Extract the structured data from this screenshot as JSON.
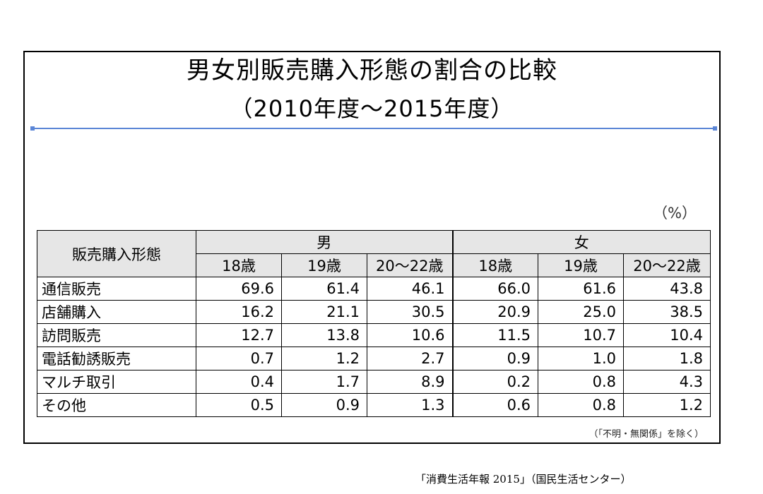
{
  "title": "男女別販売購入形態の割合の比較",
  "subtitle": "（2010年度～2015年度）",
  "unit": "（%）",
  "table": {
    "corner_header": "販売購入形態",
    "groups": [
      "男",
      "女"
    ],
    "ages": [
      "18歳",
      "19歳",
      "20～22歳",
      "18歳",
      "19歳",
      "20～22歳"
    ],
    "rows": [
      {
        "label": "通信販売",
        "values": [
          "69.6",
          "61.4",
          "46.1",
          "66.0",
          "61.6",
          "43.8"
        ]
      },
      {
        "label": "店舗購入",
        "values": [
          "16.2",
          "21.1",
          "30.5",
          "20.9",
          "25.0",
          "38.5"
        ]
      },
      {
        "label": "訪問販売",
        "values": [
          "12.7",
          "13.8",
          "10.6",
          "11.5",
          "10.7",
          "10.4"
        ]
      },
      {
        "label": "電話勧誘販売",
        "values": [
          "0.7",
          "1.2",
          "2.7",
          "0.9",
          "1.0",
          "1.8"
        ]
      },
      {
        "label": "マルチ取引",
        "values": [
          "0.4",
          "1.7",
          "8.9",
          "0.2",
          "0.8",
          "4.3"
        ]
      },
      {
        "label": "その他",
        "values": [
          "0.5",
          "0.9",
          "1.3",
          "0.6",
          "0.8",
          "1.2"
        ]
      }
    ]
  },
  "footnote": "（「不明・無関係」を除く）",
  "source": "「消費生活年報 2015」（国民生活センター）",
  "colors": {
    "header_bg": "#e6e6e6",
    "rule": "#5b86d6"
  }
}
